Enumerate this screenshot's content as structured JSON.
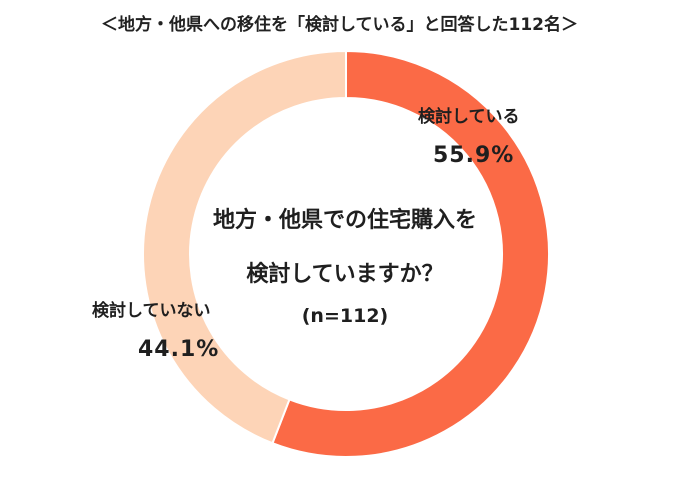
{
  "chart_data": {
    "type": "pie",
    "title": "＜地方・他県への移住を「検討している」と回答した112名＞",
    "center_title_line1": "地方・他県での住宅購入を",
    "center_title_line2": "検討していますか？",
    "center_n": "(n=112)",
    "categories": [
      "検討している",
      "検討していない"
    ],
    "values": [
      55.9,
      44.1
    ],
    "value_labels": [
      "55.9%",
      "44.1%"
    ],
    "colors": [
      "#fb6a46",
      "#fdd4b7"
    ]
  }
}
